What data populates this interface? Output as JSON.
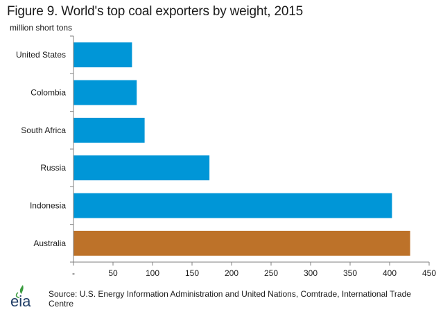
{
  "chart_data": {
    "type": "bar",
    "orientation": "horizontal",
    "title": "Figure 9. World's top coal exporters by weight, 2015",
    "ylabel": "million short tons",
    "categories": [
      "United States",
      "Colombia",
      "South Africa",
      "Russia",
      "Indonesia",
      "Australia"
    ],
    "values": [
      74,
      80,
      90,
      172,
      403,
      426
    ],
    "xlim": [
      0,
      450
    ],
    "xticks": [
      0,
      50,
      100,
      150,
      200,
      250,
      300,
      350,
      400,
      450
    ],
    "xtick_labels": [
      "-",
      "50",
      "100",
      "150",
      "200",
      "250",
      "300",
      "350",
      "400",
      "450"
    ],
    "bar_colors": [
      "#0096d7",
      "#0096d7",
      "#0096d7",
      "#0096d7",
      "#0096d7",
      "#bd7229"
    ],
    "grid": false
  },
  "footer": {
    "logo_text": "eia",
    "source": "Source: U.S. Energy Information Administration and United Nations, Comtrade, International Trade Centre"
  },
  "colors": {
    "bar_default": "#0096d7",
    "bar_highlight": "#bd7229",
    "axis": "#7f7f7f",
    "logo": "#1f3d66",
    "logo_accent": "#3a9c3f"
  }
}
